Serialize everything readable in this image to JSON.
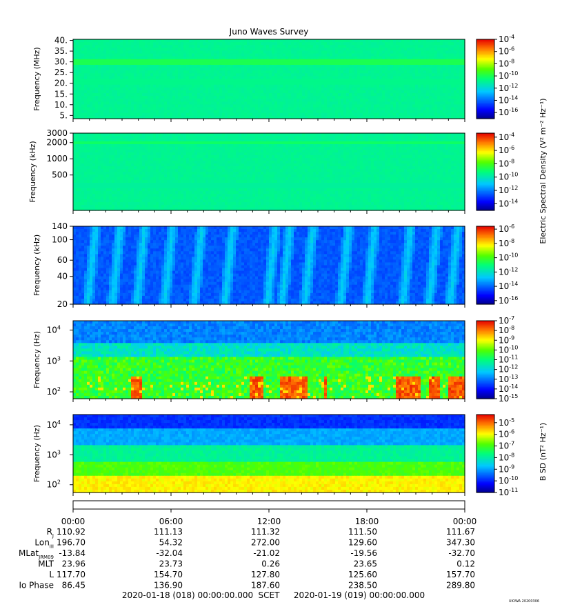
{
  "chart_data": {
    "type": "heatmap",
    "title": "Juno Waves Survey",
    "footer_stamp": "UIOWA 20200306",
    "scet_label": "SCET",
    "start_time": "2020-01-18 (018) 00:00:00.000",
    "end_time": "2020-01-19 (019) 00:00:00.000",
    "panels": [
      {
        "id": "p1",
        "ylabel": "Frequency (MHz)",
        "yscale": "linear",
        "ylim": [
          3.5,
          40.5
        ],
        "yticks": [
          {
            "v": 40,
            "label": "40."
          },
          {
            "v": 35,
            "label": "35."
          },
          {
            "v": 30,
            "label": "30."
          },
          {
            "v": 25,
            "label": "25."
          },
          {
            "v": 20,
            "label": "20."
          },
          {
            "v": 15,
            "label": "15."
          },
          {
            "v": 10,
            "label": "10."
          },
          {
            "v": 5,
            "label": "5."
          }
        ],
        "colorbar": {
          "min_exp": -17,
          "max_exp": -4,
          "labels": [
            -4,
            -6,
            -8,
            -10,
            -12,
            -14,
            -16
          ]
        },
        "bands": [
          {
            "center": 21,
            "level": 0.38
          },
          {
            "center": 30,
            "level": 0.44
          }
        ]
      },
      {
        "id": "p2",
        "ylabel": "Frequency (kHz)",
        "yscale": "log",
        "ylim": [
          110,
          3000
        ],
        "yticks": [
          {
            "v": 3000,
            "label": "3000"
          },
          {
            "v": 2000,
            "label": "2000"
          },
          {
            "v": 1000,
            "label": "1000"
          },
          {
            "v": 500,
            "label": "500"
          }
        ],
        "colorbar": {
          "min_exp": -15,
          "max_exp": -3.4,
          "labels": [
            -4,
            -6,
            -8,
            -10,
            -12,
            -14
          ]
        },
        "bands": [
          {
            "center": 320,
            "level": 0.36
          },
          {
            "center": 2000,
            "level": 0.42
          }
        ]
      },
      {
        "id": "p3",
        "ylabel": "Frequency (kHz)",
        "yscale": "log",
        "ylim": [
          20,
          140
        ],
        "yticks": [
          {
            "v": 140,
            "label": "140"
          },
          {
            "v": 100,
            "label": "100"
          },
          {
            "v": 60,
            "label": "60"
          },
          {
            "v": 40,
            "label": "40"
          },
          {
            "v": 20,
            "label": "20"
          }
        ],
        "colorbar": {
          "min_exp": -16.5,
          "max_exp": -5.6,
          "labels": [
            -6,
            -8,
            -10,
            -12,
            -14,
            -16
          ]
        },
        "bursts_hours": [
          0.9,
          2.4,
          3.9,
          5.6,
          7.4,
          9.3,
          11.9,
          12.8,
          14.2,
          16.4,
          18.0,
          20.2,
          21.8,
          23.1
        ]
      },
      {
        "id": "p4",
        "ylabel": "Frequency (Hz)",
        "yscale": "log",
        "ylim": [
          60,
          20000
        ],
        "yticks": [
          {
            "v": 10000,
            "label": "10",
            "exp": "4"
          },
          {
            "v": 1000,
            "label": "10",
            "exp": "3"
          },
          {
            "v": 100,
            "label": "10",
            "exp": "2"
          }
        ],
        "colorbar": {
          "min_exp": -15,
          "max_exp": -7,
          "labels": [
            -7,
            -8,
            -9,
            -10,
            -11,
            -12,
            -13,
            -14,
            -15
          ]
        },
        "hot_intervals_hours": [
          [
            3.6,
            4.3
          ],
          [
            10.8,
            11.6
          ],
          [
            12.7,
            14.4
          ],
          [
            15.3,
            15.6
          ],
          [
            19.8,
            21.3
          ],
          [
            21.8,
            22.4
          ],
          [
            23.0,
            24.0
          ]
        ]
      },
      {
        "id": "p5",
        "ylabel": "Frequency (Hz)",
        "yscale": "log",
        "ylim": [
          55,
          22000
        ],
        "yticks": [
          {
            "v": 10000,
            "label": "10",
            "exp": "4"
          },
          {
            "v": 1000,
            "label": "10",
            "exp": "3"
          },
          {
            "v": 100,
            "label": "10",
            "exp": "2"
          }
        ],
        "colorbar": {
          "min_exp": -11,
          "max_exp": -4.3,
          "labels": [
            -5,
            -6,
            -7,
            -8,
            -9,
            -10,
            -11
          ]
        }
      }
    ],
    "colorbar_titles": {
      "e_field": "Electric Spectral Density (V² m⁻² Hz⁻¹)",
      "b_field": "B SD (nT² Hz⁻¹)"
    },
    "x_axis": {
      "unit": "hours",
      "range": [
        0,
        24
      ],
      "ticks": [
        {
          "h": 0,
          "label": "00:00"
        },
        {
          "h": 6,
          "label": "06:00"
        },
        {
          "h": 12,
          "label": "12:00"
        },
        {
          "h": 18,
          "label": "18:00"
        },
        {
          "h": 24,
          "label": "00:00"
        }
      ]
    },
    "ephemeris": [
      {
        "label": "R",
        "sub": "J",
        "values": [
          "110.92",
          "111.13",
          "111.32",
          "111.50",
          "111.67"
        ]
      },
      {
        "label": "Lon",
        "sub": "III",
        "values": [
          "196.70",
          "54.32",
          "272.00",
          "129.60",
          "347.30"
        ]
      },
      {
        "label": "MLat",
        "sub": "JRM09",
        "values": [
          "-13.84",
          "-32.04",
          "-21.02",
          "-19.56",
          "-32.70"
        ]
      },
      {
        "label": "MLT",
        "sub": "",
        "values": [
          "23.96",
          "23.73",
          "0.26",
          "23.65",
          "0.12"
        ]
      },
      {
        "label": "L",
        "sub": "",
        "values": [
          "117.70",
          "154.70",
          "127.80",
          "125.60",
          "157.70"
        ]
      },
      {
        "label": "Io Phase",
        "sub": "",
        "values": [
          "86.45",
          "136.90",
          "187.60",
          "238.50",
          "289.80"
        ]
      }
    ]
  }
}
